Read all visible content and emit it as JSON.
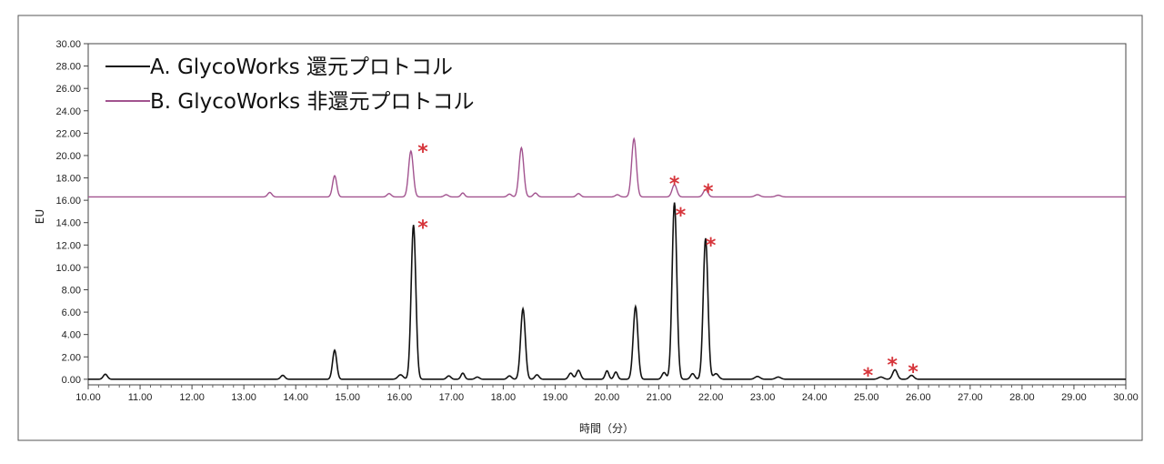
{
  "chart_data": {
    "type": "line",
    "xlabel": "時間（分）",
    "ylabel": "EU",
    "xlim": [
      10.0,
      30.0
    ],
    "ylim": [
      -0.5,
      30.0
    ],
    "x_ticks": [
      "10.00",
      "11.00",
      "12.00",
      "13.00",
      "14.00",
      "15.00",
      "16.00",
      "17.00",
      "18.00",
      "19.00",
      "20.00",
      "21.00",
      "22.00",
      "23.00",
      "24.00",
      "25.00",
      "26.00",
      "27.00",
      "28.00",
      "29.00",
      "30.00"
    ],
    "y_ticks": [
      "0.00",
      "2.00",
      "4.00",
      "6.00",
      "8.00",
      "10.00",
      "12.00",
      "14.00",
      "16.00",
      "18.00",
      "20.00",
      "22.00",
      "24.00",
      "26.00",
      "28.00",
      "30.00"
    ],
    "legend_position": "top-left",
    "series": [
      {
        "name": "A. GlycoWorks 還元プロトコル",
        "color": "#111111",
        "baseline": 0.0,
        "peaks": [
          {
            "x": 10.33,
            "height": 0.45,
            "width": 0.04
          },
          {
            "x": 13.75,
            "height": 0.35,
            "width": 0.04
          },
          {
            "x": 14.75,
            "height": 2.6,
            "width": 0.04
          },
          {
            "x": 16.02,
            "height": 0.4,
            "width": 0.05
          },
          {
            "x": 16.27,
            "height": 13.8,
            "width": 0.045
          },
          {
            "x": 16.95,
            "height": 0.3,
            "width": 0.04
          },
          {
            "x": 17.22,
            "height": 0.55,
            "width": 0.035
          },
          {
            "x": 17.5,
            "height": 0.2,
            "width": 0.04
          },
          {
            "x": 18.12,
            "height": 0.3,
            "width": 0.04
          },
          {
            "x": 18.38,
            "height": 6.3,
            "width": 0.045
          },
          {
            "x": 18.65,
            "height": 0.4,
            "width": 0.04
          },
          {
            "x": 19.3,
            "height": 0.55,
            "width": 0.04
          },
          {
            "x": 19.45,
            "height": 0.8,
            "width": 0.04
          },
          {
            "x": 20.0,
            "height": 0.75,
            "width": 0.035
          },
          {
            "x": 20.17,
            "height": 0.65,
            "width": 0.035
          },
          {
            "x": 20.55,
            "height": 6.5,
            "width": 0.045
          },
          {
            "x": 21.1,
            "height": 0.6,
            "width": 0.04
          },
          {
            "x": 21.3,
            "height": 15.8,
            "width": 0.045
          },
          {
            "x": 21.65,
            "height": 0.5,
            "width": 0.04
          },
          {
            "x": 21.9,
            "height": 12.6,
            "width": 0.045
          },
          {
            "x": 22.1,
            "height": 0.5,
            "width": 0.05
          },
          {
            "x": 22.9,
            "height": 0.25,
            "width": 0.05
          },
          {
            "x": 23.3,
            "height": 0.2,
            "width": 0.05
          },
          {
            "x": 25.28,
            "height": 0.2,
            "width": 0.05
          },
          {
            "x": 25.55,
            "height": 0.85,
            "width": 0.045
          },
          {
            "x": 25.87,
            "height": 0.35,
            "width": 0.045
          }
        ]
      },
      {
        "name": "B. GlycoWorks 非還元プロトコル",
        "color": "#a2538f",
        "baseline": 16.3,
        "peaks": [
          {
            "x": 13.5,
            "height": 0.4,
            "width": 0.04
          },
          {
            "x": 14.75,
            "height": 1.9,
            "width": 0.04
          },
          {
            "x": 15.8,
            "height": 0.3,
            "width": 0.04
          },
          {
            "x": 16.22,
            "height": 4.1,
            "width": 0.045
          },
          {
            "x": 16.9,
            "height": 0.2,
            "width": 0.04
          },
          {
            "x": 17.22,
            "height": 0.35,
            "width": 0.035
          },
          {
            "x": 18.12,
            "height": 0.25,
            "width": 0.04
          },
          {
            "x": 18.35,
            "height": 4.4,
            "width": 0.045
          },
          {
            "x": 18.62,
            "height": 0.35,
            "width": 0.04
          },
          {
            "x": 19.45,
            "height": 0.3,
            "width": 0.04
          },
          {
            "x": 20.2,
            "height": 0.2,
            "width": 0.04
          },
          {
            "x": 20.52,
            "height": 5.2,
            "width": 0.045
          },
          {
            "x": 21.3,
            "height": 1.1,
            "width": 0.045
          },
          {
            "x": 21.9,
            "height": 0.65,
            "width": 0.045
          },
          {
            "x": 22.9,
            "height": 0.2,
            "width": 0.05
          },
          {
            "x": 23.3,
            "height": 0.15,
            "width": 0.05
          }
        ]
      }
    ],
    "annotations": [
      {
        "text": "*",
        "x": 16.45,
        "y": 20.9
      },
      {
        "text": "*",
        "x": 21.3,
        "y": 18.0
      },
      {
        "text": "*",
        "x": 21.95,
        "y": 17.3
      },
      {
        "text": "*",
        "x": 16.45,
        "y": 14.1
      },
      {
        "text": "*",
        "x": 21.42,
        "y": 15.2
      },
      {
        "text": "*",
        "x": 22.0,
        "y": 12.5
      },
      {
        "text": "*",
        "x": 25.03,
        "y": 0.9
      },
      {
        "text": "*",
        "x": 25.5,
        "y": 1.8
      },
      {
        "text": "*",
        "x": 25.9,
        "y": 1.2
      }
    ]
  }
}
